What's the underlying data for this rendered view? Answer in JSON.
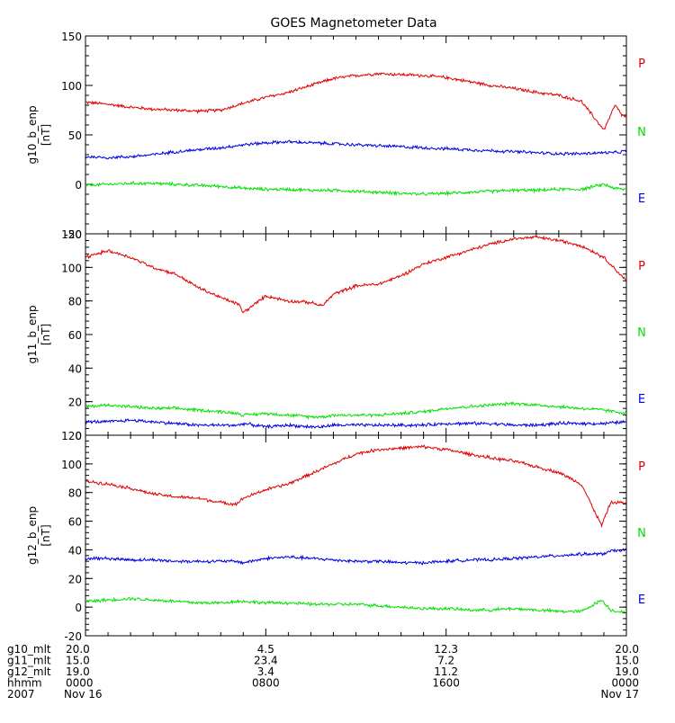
{
  "title": "GOES Magnetometer Data",
  "colors": {
    "P": "#e00000",
    "N": "#00e000",
    "E": "#0000e0",
    "axis": "#000000"
  },
  "legend": [
    "P",
    "N",
    "E"
  ],
  "chart_data": [
    {
      "type": "line",
      "ylabel": "g10_b_enp",
      "yunit": "[nT]",
      "ylim": [
        -50,
        150
      ],
      "yticks": [
        -50,
        0,
        50,
        100,
        150
      ],
      "x": [
        0,
        1,
        2,
        3,
        4,
        5,
        6,
        7,
        8,
        9,
        10,
        11,
        12,
        13,
        14,
        15,
        16,
        17,
        18,
        19,
        20,
        21,
        22,
        23,
        23.5,
        23.8,
        24
      ],
      "series": [
        {
          "name": "P",
          "values": [
            83,
            81,
            78,
            76,
            75,
            74,
            75,
            82,
            88,
            93,
            100,
            107,
            110,
            112,
            111,
            110,
            108,
            104,
            100,
            97,
            93,
            90,
            84,
            55,
            80,
            70,
            68
          ]
        },
        {
          "name": "N",
          "values": [
            -1,
            0,
            1,
            1,
            0,
            -1,
            -2,
            -4,
            -5,
            -5,
            -6,
            -6,
            -7,
            -8,
            -9,
            -10,
            -9,
            -8,
            -7,
            -6,
            -6,
            -5,
            -5,
            0,
            -4,
            -5,
            -5
          ]
        },
        {
          "name": "E",
          "values": [
            28,
            27,
            28,
            30,
            33,
            35,
            37,
            40,
            42,
            43,
            42,
            41,
            40,
            39,
            38,
            37,
            36,
            35,
            34,
            33,
            32,
            31,
            31,
            32,
            32,
            33,
            34
          ]
        }
      ]
    },
    {
      "type": "line",
      "ylabel": "g11_b_enp",
      "yunit": "[nT]",
      "ylim": [
        0,
        120
      ],
      "yticks": [
        0,
        20,
        40,
        60,
        80,
        100,
        120
      ],
      "x": [
        0,
        1,
        2,
        3,
        4,
        5,
        6,
        6.8,
        7,
        8,
        9,
        10,
        10.5,
        11,
        12,
        13,
        14,
        15,
        16,
        17,
        18,
        19,
        20,
        21,
        22,
        23,
        24
      ],
      "series": [
        {
          "name": "P",
          "values": [
            106,
            110,
            106,
            100,
            96,
            88,
            82,
            78,
            73,
            83,
            80,
            79,
            77,
            84,
            89,
            90,
            95,
            102,
            106,
            110,
            114,
            117,
            118,
            116,
            113,
            106,
            92
          ]
        },
        {
          "name": "N",
          "values": [
            17,
            18,
            17,
            16,
            16,
            15,
            14,
            13,
            12,
            13,
            12,
            11,
            11,
            12,
            12,
            12,
            13,
            14,
            16,
            17,
            18,
            19,
            18,
            17,
            16,
            15,
            13
          ]
        },
        {
          "name": "E",
          "values": [
            8,
            8,
            9,
            8,
            7,
            6,
            6,
            6,
            7,
            5,
            6,
            5,
            5,
            6,
            6,
            6,
            6,
            6,
            7,
            7,
            7,
            6,
            6,
            7,
            7,
            7,
            8
          ]
        }
      ]
    },
    {
      "type": "line",
      "ylabel": "g12_b_enp",
      "yunit": "[nT]",
      "ylim": [
        -20,
        120
      ],
      "yticks": [
        -20,
        0,
        20,
        40,
        60,
        80,
        100,
        120
      ],
      "x": [
        0,
        1,
        2,
        3,
        4,
        5,
        6,
        6.7,
        7,
        8,
        9,
        10,
        11,
        12,
        13,
        14,
        15,
        16,
        17,
        18,
        19,
        20,
        21,
        22,
        22.9,
        23.3,
        24
      ],
      "series": [
        {
          "name": "P",
          "values": [
            88,
            86,
            83,
            79,
            77,
            76,
            73,
            72,
            76,
            82,
            86,
            93,
            100,
            107,
            110,
            111,
            112,
            110,
            107,
            104,
            102,
            98,
            94,
            86,
            57,
            73,
            73
          ]
        },
        {
          "name": "N",
          "values": [
            4,
            5,
            6,
            5,
            4,
            3,
            3,
            4,
            4,
            3,
            3,
            2,
            2,
            2,
            1,
            0,
            -1,
            -1,
            -2,
            -2,
            -1,
            -2,
            -3,
            -3,
            5,
            -2,
            -4
          ]
        },
        {
          "name": "E",
          "values": [
            34,
            34,
            33,
            33,
            32,
            32,
            32,
            32,
            31,
            34,
            35,
            34,
            33,
            32,
            32,
            31,
            31,
            32,
            33,
            33,
            34,
            35,
            36,
            37,
            37,
            39,
            40
          ]
        }
      ]
    }
  ],
  "footer": {
    "rows": [
      {
        "label": "g10_mlt",
        "values": [
          "20.0",
          "4.5",
          "12.3",
          "20.0"
        ]
      },
      {
        "label": "g11_mlt",
        "values": [
          "15.0",
          "23.4",
          "7.2",
          "15.0"
        ]
      },
      {
        "label": "g12_mlt",
        "values": [
          "19.0",
          "3.4",
          "11.2",
          "19.0"
        ]
      },
      {
        "label": "hhmm",
        "values": [
          "0000",
          "0800",
          "1600",
          "0000"
        ]
      },
      {
        "label": "2007",
        "values": [
          "Nov 16",
          "",
          "",
          "Nov 17"
        ]
      }
    ]
  }
}
